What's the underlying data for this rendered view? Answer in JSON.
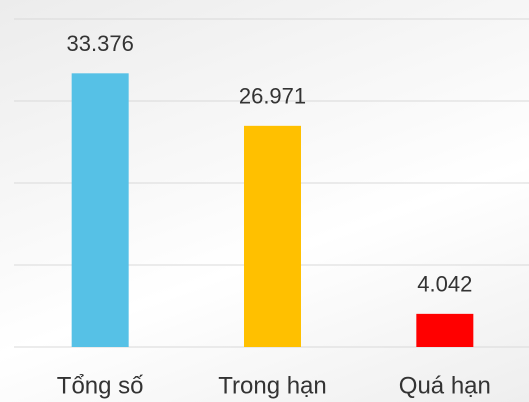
{
  "chart_data": {
    "type": "bar",
    "categories": [
      "Tổng số",
      "Trong hạn",
      "Quá hạn"
    ],
    "values": [
      33376,
      26971,
      4042
    ],
    "value_labels": [
      "33.376",
      "26.971",
      "4.042"
    ],
    "colors": [
      "#56c1e6",
      "#ffc000",
      "#ff0000"
    ],
    "ylim": [
      0,
      40000
    ],
    "yticks": [
      0,
      10000,
      20000,
      30000,
      40000
    ],
    "grid": true
  }
}
